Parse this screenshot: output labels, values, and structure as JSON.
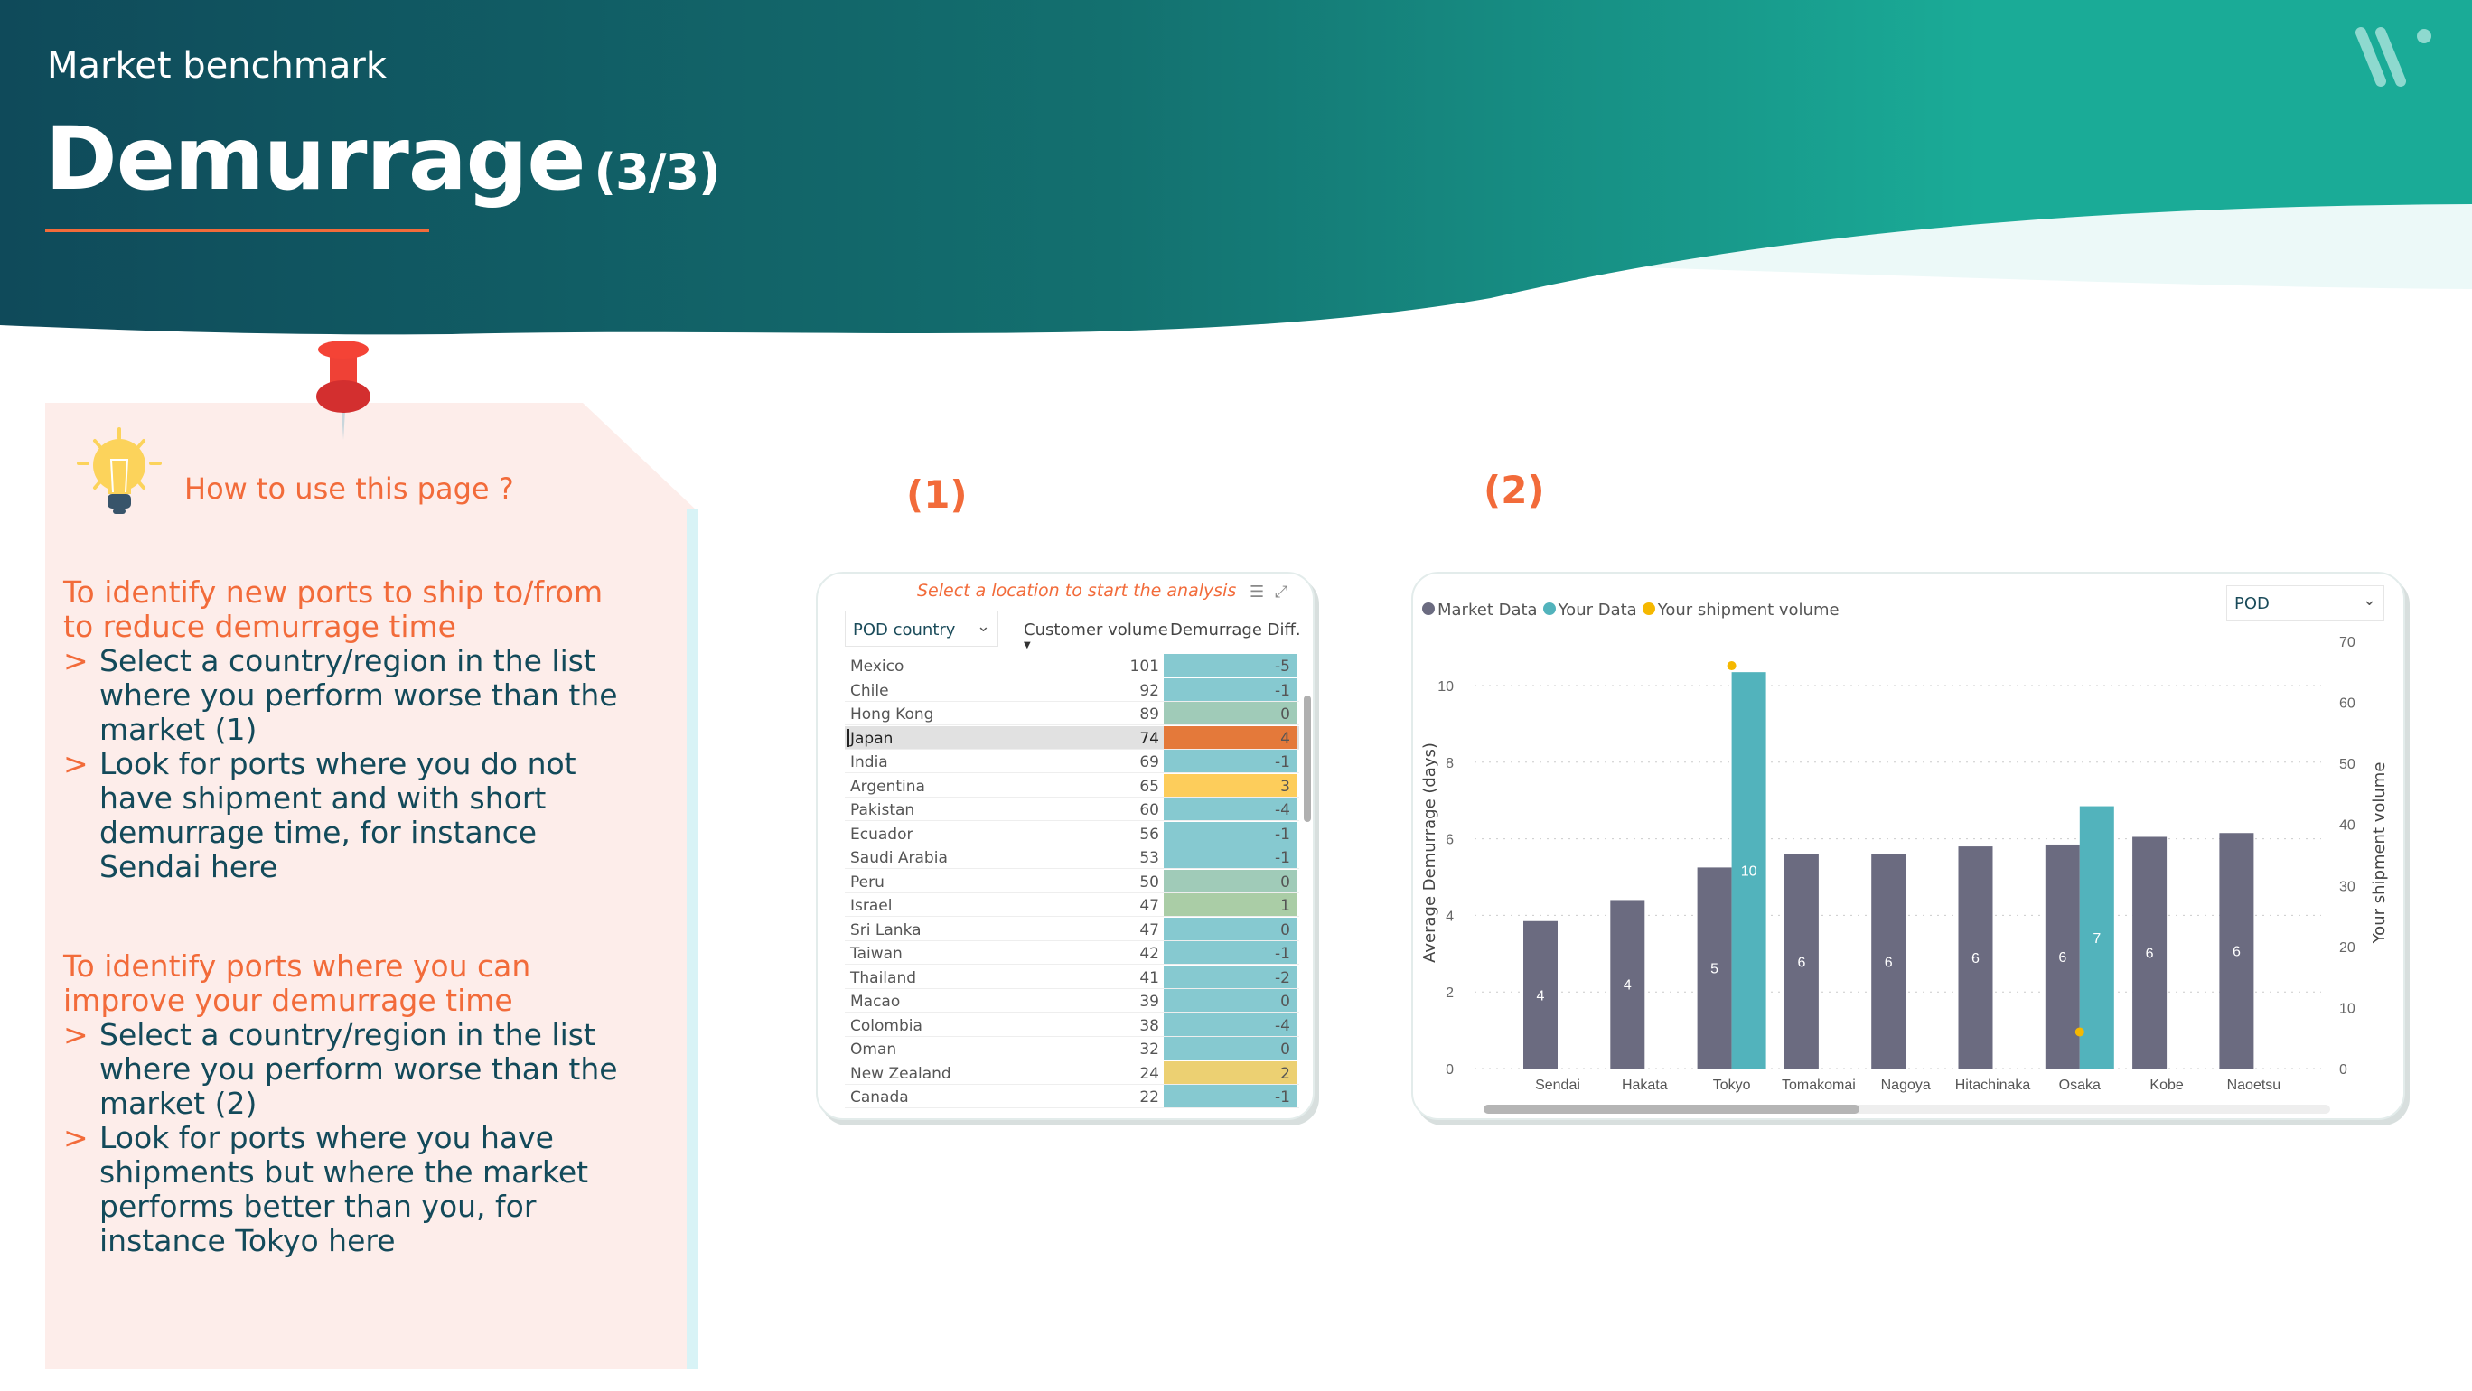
{
  "header": {
    "subtitle": "Market benchmark",
    "title": "Demurrage",
    "page": "(3/3)",
    "colors": {
      "dark": "#0f4a5a",
      "light": "#1aab97",
      "accent": "#f26b3a"
    }
  },
  "note": {
    "heading": "How to use this page ?",
    "sections": [
      {
        "title": "To identify new ports to ship to/from to reduce demurrage time",
        "items": [
          "Select a country/region in the list where you perform worse than the market (1)",
          "Look for ports where you do not have shipment and with short demurrage time, for instance Sendai here"
        ]
      },
      {
        "title": "To identify ports where you can improve your demurrage time",
        "items": [
          "Select a country/region in the list where you perform worse than the market (2)",
          "Look for ports where you have shipments but where the market performs better than you, for instance Tokyo here"
        ]
      }
    ],
    "bullet": ">"
  },
  "labels": {
    "one": "(1)",
    "two": "(2)"
  },
  "table": {
    "caption": "Select a location to start the analysis",
    "filter_icon": "filter-icon",
    "focus_icon": "focus-mode-icon",
    "dropdown": "POD country",
    "columns": [
      "Customer volume",
      "Demurrage Diff."
    ],
    "selected": "Japan",
    "rows": [
      {
        "country": "Mexico",
        "volume": 101,
        "diff": -5,
        "color": "#86c9d0"
      },
      {
        "country": "Chile",
        "volume": 92,
        "diff": -1,
        "color": "#86c9d0"
      },
      {
        "country": "Hong Kong",
        "volume": 89,
        "diff": 0,
        "color": "#a0cbb8"
      },
      {
        "country": "Japan",
        "volume": 74,
        "diff": 4,
        "color": "#e4793a"
      },
      {
        "country": "India",
        "volume": 69,
        "diff": -1,
        "color": "#86c9d0"
      },
      {
        "country": "Argentina",
        "volume": 65,
        "diff": 3,
        "color": "#fdcd5b"
      },
      {
        "country": "Pakistan",
        "volume": 60,
        "diff": -4,
        "color": "#86c9d0"
      },
      {
        "country": "Ecuador",
        "volume": 56,
        "diff": -1,
        "color": "#86c9d0"
      },
      {
        "country": "Saudi Arabia",
        "volume": 53,
        "diff": -1,
        "color": "#86c9d0"
      },
      {
        "country": "Peru",
        "volume": 50,
        "diff": 0,
        "color": "#a0cbb8"
      },
      {
        "country": "Israel",
        "volume": 47,
        "diff": 1,
        "color": "#aacda6"
      },
      {
        "country": "Sri Lanka",
        "volume": 47,
        "diff": 0,
        "color": "#86c9d0"
      },
      {
        "country": "Taiwan",
        "volume": 42,
        "diff": -1,
        "color": "#86c9d0"
      },
      {
        "country": "Thailand",
        "volume": 41,
        "diff": -2,
        "color": "#86c9d0"
      },
      {
        "country": "Macao",
        "volume": 39,
        "diff": 0,
        "color": "#86c9d0"
      },
      {
        "country": "Colombia",
        "volume": 38,
        "diff": -4,
        "color": "#86c9d0"
      },
      {
        "country": "Oman",
        "volume": 32,
        "diff": 0,
        "color": "#86c9d0"
      },
      {
        "country": "New Zealand",
        "volume": 24,
        "diff": 2,
        "color": "#ecd072"
      },
      {
        "country": "Canada",
        "volume": 22,
        "diff": -1,
        "color": "#86c9d0"
      }
    ]
  },
  "chart_data": {
    "type": "bar",
    "dropdown": "POD",
    "categories": [
      "Sendai",
      "Hakata",
      "Tokyo",
      "Tomakomai",
      "Nagoya",
      "Hitachinaka",
      "Osaka",
      "Kobe",
      "Naoetsu"
    ],
    "series": [
      {
        "name": "Market Data",
        "kind": "bar",
        "axis": "left",
        "color": "#6b6b80",
        "values": [
          3.85,
          4.4,
          5.25,
          5.6,
          5.6,
          5.8,
          5.85,
          6.05,
          6.15
        ],
        "labels": [
          "4",
          "4",
          "5",
          "6",
          "6",
          "6",
          "6",
          "6",
          "6"
        ]
      },
      {
        "name": "Your Data",
        "kind": "bar",
        "axis": "left",
        "color": "#52b3bc",
        "values": [
          null,
          null,
          10.35,
          null,
          null,
          null,
          6.85,
          null,
          null
        ],
        "labels": [
          null,
          null,
          "10",
          null,
          null,
          null,
          "7",
          null,
          null
        ]
      },
      {
        "name": "Your shipment volume",
        "kind": "point",
        "axis": "right",
        "color": "#f5b800",
        "values": [
          null,
          null,
          66,
          null,
          null,
          null,
          6,
          null,
          null
        ]
      }
    ],
    "ylabel": "Average Demurrage (days)",
    "y2label": "Your shipment volume",
    "ylim": [
      0,
      11
    ],
    "yticks": [
      0,
      2,
      4,
      6,
      8,
      10
    ],
    "y2lim": [
      0,
      70
    ],
    "y2ticks": [
      0,
      10,
      20,
      30,
      40,
      50,
      60,
      70
    ],
    "grid": true,
    "legend": "top-left"
  }
}
